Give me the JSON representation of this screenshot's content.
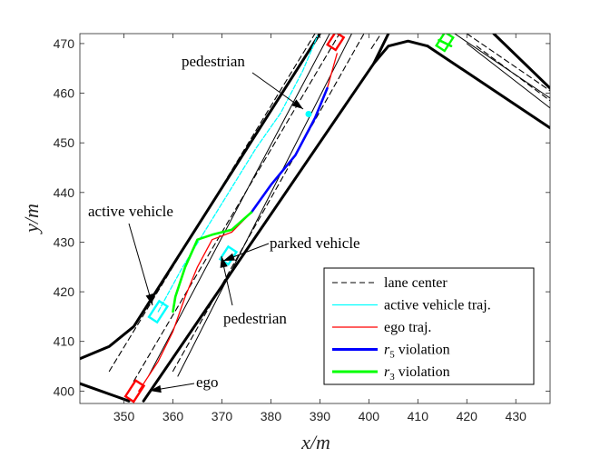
{
  "chart_data": {
    "type": "line",
    "title": "",
    "xlabel": "x/m",
    "ylabel": "y/m",
    "xlim": [
      341,
      437
    ],
    "ylim": [
      397.5,
      472
    ],
    "xticks": [
      350,
      360,
      370,
      380,
      390,
      400,
      410,
      420,
      430
    ],
    "yticks": [
      400,
      410,
      420,
      430,
      440,
      450,
      460,
      470
    ],
    "legend_position": "bottom-right",
    "legend": [
      {
        "key": "lane_center",
        "label": "lane center",
        "color": "#000000",
        "style": "dashed"
      },
      {
        "key": "active_traj",
        "label": "active vehicle traj.",
        "color": "#00FFFF",
        "style": "solid"
      },
      {
        "key": "ego_traj",
        "label": "ego traj.",
        "color": "#FF0000",
        "style": "solid"
      },
      {
        "key": "r5",
        "label": "r5 violation",
        "math_symbol": "r",
        "math_sub": "5",
        "math_rest": " violation",
        "color": "#0000FF",
        "style": "solid"
      },
      {
        "key": "r3",
        "label": "r3 violation",
        "math_symbol": "r",
        "math_sub": "3",
        "math_rest": " violation",
        "color": "#00FF00",
        "style": "solid"
      }
    ],
    "annotations": [
      {
        "key": "ego",
        "text": "ego"
      },
      {
        "key": "active_vehicle",
        "text": "active vehicle"
      },
      {
        "key": "parked_vehicle",
        "text": "parked vehicle"
      },
      {
        "key": "pedestrian_top",
        "text": "pedestrian"
      },
      {
        "key": "pedestrian_mid",
        "text": "pedestrian"
      }
    ],
    "series": [
      {
        "name": "road boundary left",
        "style": "boundary",
        "color": "#000000",
        "x": [
          341,
          347,
          352,
          390
        ],
        "y": [
          406.5,
          409,
          413,
          472
        ]
      },
      {
        "name": "road boundary left lower",
        "style": "boundary",
        "color": "#000000",
        "x": [
          341,
          351
        ],
        "y": [
          401.5,
          398
        ]
      },
      {
        "name": "road boundary right",
        "style": "boundary",
        "color": "#000000",
        "x": [
          354,
          401,
          404
        ],
        "y": [
          398,
          466,
          472
        ]
      },
      {
        "name": "road boundary curve",
        "style": "boundary",
        "color": "#000000",
        "x": [
          401,
          404,
          408,
          412
        ],
        "y": [
          466,
          469.5,
          470.5,
          469.5
        ]
      },
      {
        "name": "road boundary branch upper",
        "style": "boundary",
        "color": "#000000",
        "x": [
          425.5,
          437
        ],
        "y": [
          472,
          461
        ]
      },
      {
        "name": "road boundary branch lower",
        "style": "boundary",
        "color": "#000000",
        "x": [
          412,
          437
        ],
        "y": [
          469.5,
          453
        ]
      },
      {
        "name": "lane divider a",
        "style": "thin",
        "color": "#000000",
        "x": [
          355,
          392
        ],
        "y": [
          403,
          472
        ]
      },
      {
        "name": "lane divider b",
        "style": "thin",
        "color": "#000000",
        "x": [
          361,
          396.5
        ],
        "y": [
          403,
          472
        ]
      },
      {
        "name": "branch divider a",
        "style": "thin",
        "color": "#000000",
        "x": [
          417.5,
          437
        ],
        "y": [
          472,
          459
        ]
      },
      {
        "name": "branch divider b",
        "style": "thin",
        "color": "#000000",
        "x": [
          420,
          437
        ],
        "y": [
          470,
          457
        ]
      },
      {
        "name": "lane center 1",
        "style": "dashed",
        "color": "#000000",
        "x": [
          347,
          389
        ],
        "y": [
          404,
          472
        ]
      },
      {
        "name": "lane center 2",
        "style": "dashed",
        "color": "#000000",
        "x": [
          352,
          394
        ],
        "y": [
          402,
          472
        ]
      },
      {
        "name": "lane center 3",
        "style": "dashed",
        "color": "#000000",
        "x": [
          360,
          399
        ],
        "y": [
          404,
          472
        ]
      },
      {
        "name": "lane center 4",
        "style": "dashed",
        "color": "#000000",
        "x": [
          400.5,
          402.5
        ],
        "y": [
          469,
          472
        ]
      },
      {
        "name": "branch center 1",
        "style": "dashed",
        "color": "#000000",
        "x": [
          420,
          437
        ],
        "y": [
          472,
          460.5
        ]
      },
      {
        "name": "branch center 2",
        "style": "dashed",
        "color": "#000000",
        "x": [
          422,
          437
        ],
        "y": [
          469.5,
          458.5
        ]
      },
      {
        "name": "active vehicle traj.",
        "style": "traj",
        "color": "#00FFFF",
        "x": [
          357,
          362,
          367,
          372,
          377,
          382,
          386.5,
          389.5
        ],
        "y": [
          416,
          425,
          433,
          441,
          449,
          456,
          464.5,
          471.5
        ]
      },
      {
        "name": "ego traj.",
        "style": "traj",
        "color": "#FF0000",
        "x": [
          353,
          357,
          360,
          362.5,
          365,
          368,
          372,
          376,
          380,
          385,
          389,
          391.5,
          393.5
        ],
        "y": [
          400,
          406,
          412,
          419,
          425,
          430.5,
          432,
          436,
          441.5,
          447.5,
          455,
          461,
          468
        ]
      },
      {
        "name": "r5 violation",
        "style": "violation",
        "color": "#0000FF",
        "x": [
          376,
          380,
          385,
          389,
          391.5
        ],
        "y": [
          436,
          441.5,
          447.5,
          455,
          461
        ]
      },
      {
        "name": "r3 violation",
        "style": "violation",
        "color": "#00FF00",
        "x": [
          360,
          360.5,
          362.5,
          365,
          368,
          372,
          376
        ],
        "y": [
          416,
          419,
          425,
          430.5,
          431.5,
          432.5,
          436
        ]
      },
      {
        "name": "r3 violation branch",
        "style": "violation",
        "color": "#00FF00",
        "x": [
          414.3,
          416.8
        ],
        "y": [
          470.7,
          469.5
        ]
      }
    ],
    "boxes": [
      {
        "name": "ego",
        "color": "#FF0000",
        "cx": 352.2,
        "cy": 400,
        "w": 2.0,
        "h": 3.8,
        "angle_deg": 33
      },
      {
        "name": "active vehicle",
        "color": "#00FFFF",
        "cx": 357,
        "cy": 416,
        "w": 2.0,
        "h": 3.8,
        "angle_deg": 33
      },
      {
        "name": "parked vehicle",
        "color": "#00FFFF",
        "cx": 371.3,
        "cy": 427.3,
        "w": 2.0,
        "h": 3.0,
        "angle_deg": 33
      },
      {
        "name": "vehicle far",
        "color": "#FF0000",
        "cx": 393.2,
        "cy": 470.5,
        "w": 2.0,
        "h": 3.0,
        "angle_deg": 33
      },
      {
        "name": "branch vehicle",
        "color": "#00FF00",
        "cx": 415.5,
        "cy": 470.4,
        "w": 2.0,
        "h": 3.2,
        "angle_deg": 33
      }
    ],
    "points": [
      {
        "name": "pedestrian",
        "color": "#00FFFF",
        "x": 387.7,
        "y": 455.8
      }
    ]
  }
}
